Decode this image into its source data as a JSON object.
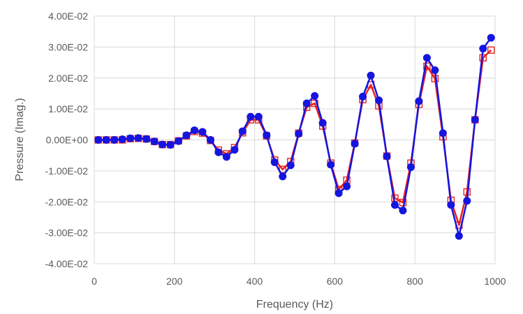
{
  "chart_data": {
    "type": "line",
    "xlabel": "Frequency (Hz)",
    "ylabel": "Pressure (Imag.)",
    "xlim": [
      0,
      1000
    ],
    "ylim": [
      -0.04,
      0.04
    ],
    "xticks": [
      0,
      200,
      400,
      600,
      800,
      1000
    ],
    "xtick_labels": [
      "0",
      "200",
      "400",
      "600",
      "800",
      "1000"
    ],
    "yticks": [
      0.04,
      0.03,
      0.02,
      0.01,
      0.0,
      -0.01,
      -0.02,
      -0.03,
      -0.04
    ],
    "ytick_labels": [
      "4.00E-02",
      "3.00E-02",
      "2.00E-02",
      "1.00E-02",
      "0.00E+00",
      "-1.00E-02",
      "-2.00E-02",
      "-3.00E-02",
      "-4.00E-02"
    ],
    "grid": true,
    "legend": "none",
    "x": [
      10,
      30,
      50,
      70,
      90,
      110,
      130,
      150,
      170,
      190,
      210,
      230,
      250,
      270,
      290,
      310,
      330,
      350,
      370,
      390,
      410,
      430,
      450,
      470,
      490,
      510,
      530,
      550,
      570,
      590,
      610,
      630,
      650,
      670,
      690,
      710,
      730,
      750,
      770,
      790,
      810,
      830,
      850,
      870,
      890,
      910,
      930,
      950,
      970,
      990
    ],
    "series": [
      {
        "color": "#e8211e",
        "marker": "square-open",
        "values": [
          0.0,
          0.0,
          0.0,
          0.0,
          0.0004,
          0.0005,
          0.0003,
          -0.0005,
          -0.0015,
          -0.0015,
          -0.0003,
          0.0013,
          0.0027,
          0.0022,
          -0.0002,
          -0.0033,
          -0.0045,
          -0.0025,
          0.0023,
          0.0065,
          0.0065,
          0.0013,
          -0.0065,
          -0.0095,
          -0.007,
          0.0022,
          0.0105,
          0.0118,
          0.0045,
          -0.0075,
          -0.016,
          -0.013,
          -0.001,
          0.013,
          0.0178,
          0.011,
          -0.0052,
          -0.0188,
          -0.0202,
          -0.0075,
          0.0115,
          0.0238,
          0.0198,
          0.001,
          -0.0195,
          -0.0275,
          -0.0168,
          0.0065,
          0.0265,
          0.029
        ]
      },
      {
        "color": "#1515e0",
        "marker": "circle-filled",
        "values": [
          0.0,
          0.0,
          0.0,
          0.0002,
          0.0005,
          0.0006,
          0.0003,
          -0.0005,
          -0.0015,
          -0.0016,
          -0.0004,
          0.0015,
          0.0031,
          0.0026,
          0.0,
          -0.004,
          -0.0055,
          -0.0032,
          0.0028,
          0.0075,
          0.0075,
          0.0015,
          -0.0072,
          -0.0118,
          -0.0082,
          0.002,
          0.0118,
          0.0142,
          0.0055,
          -0.008,
          -0.0172,
          -0.015,
          -0.0012,
          0.014,
          0.0208,
          0.0128,
          -0.0053,
          -0.021,
          -0.0228,
          -0.0088,
          0.0125,
          0.0265,
          0.0225,
          0.0022,
          -0.021,
          -0.031,
          -0.0197,
          0.0065,
          0.0295,
          0.033
        ]
      }
    ]
  }
}
